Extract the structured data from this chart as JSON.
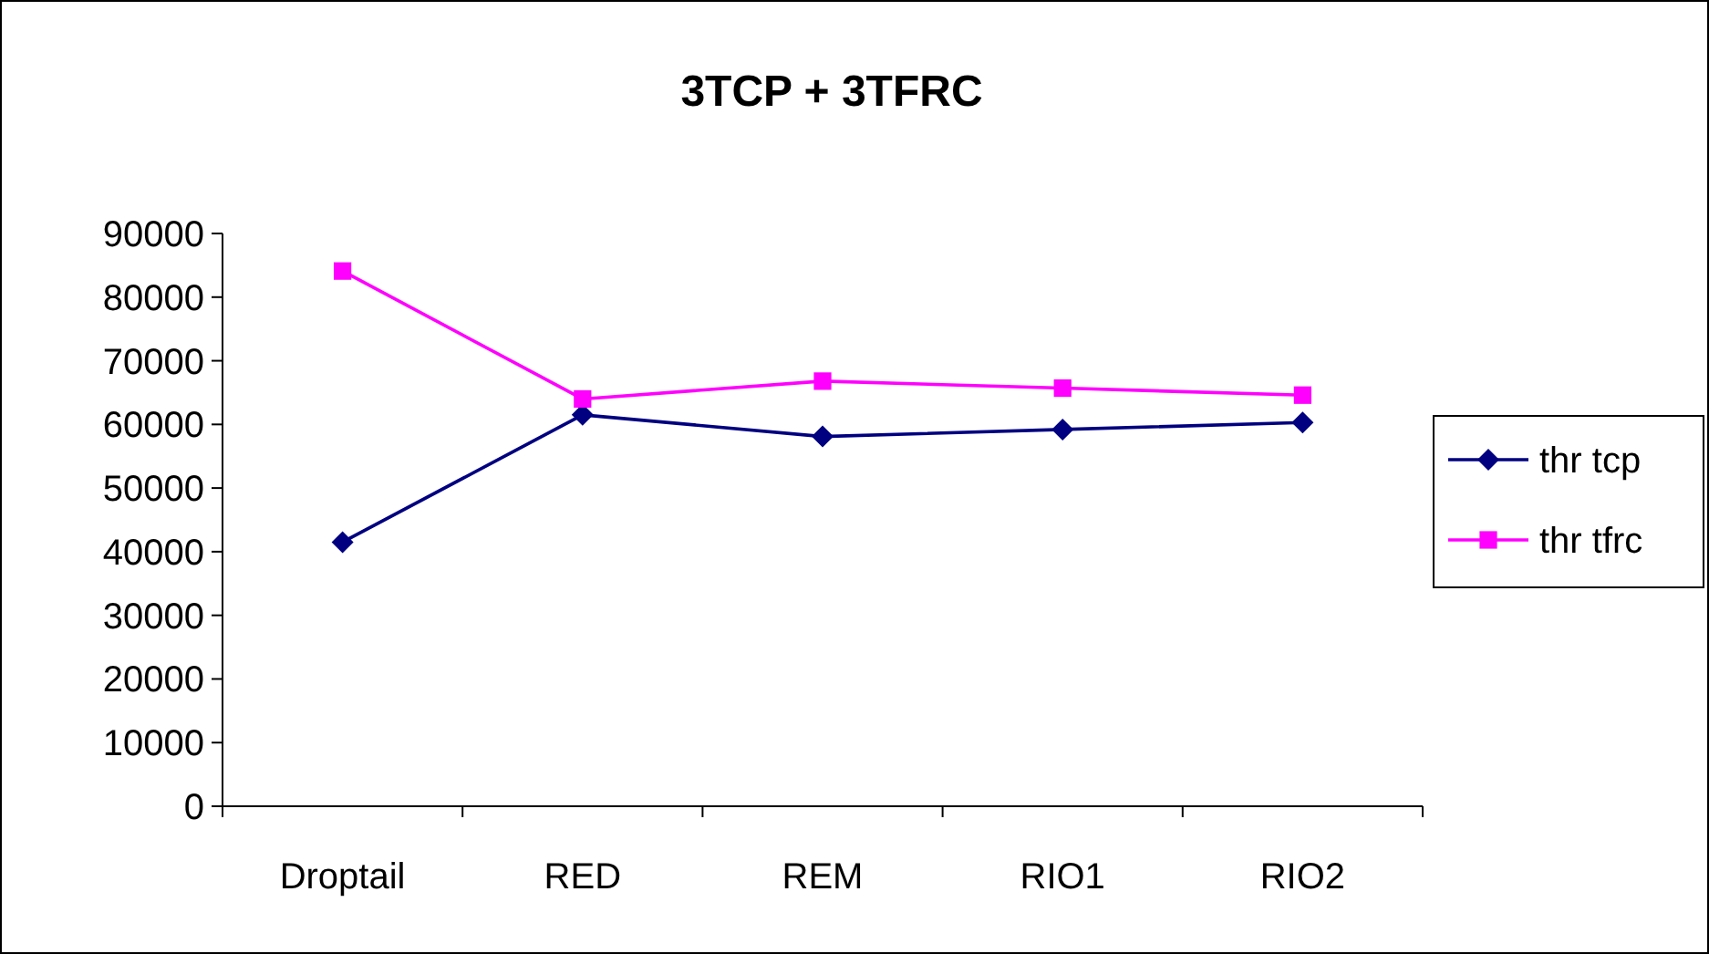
{
  "chart_data": {
    "type": "line",
    "title": "3TCP + 3TFRC",
    "categories": [
      "Droptail",
      "RED",
      "REM",
      "RIO1",
      "RIO2"
    ],
    "series": [
      {
        "name": "thr tcp",
        "color": "#000080",
        "marker": "diamond",
        "values": [
          41500,
          61500,
          58100,
          59200,
          60300
        ]
      },
      {
        "name": "thr tfrc",
        "color": "#ff00ff",
        "marker": "square",
        "values": [
          84100,
          64000,
          66800,
          65700,
          64600
        ]
      }
    ],
    "ylim": [
      0,
      90000
    ],
    "yticks": [
      0,
      10000,
      20000,
      30000,
      40000,
      50000,
      60000,
      70000,
      80000,
      90000
    ],
    "grid": false,
    "legend": "right"
  }
}
